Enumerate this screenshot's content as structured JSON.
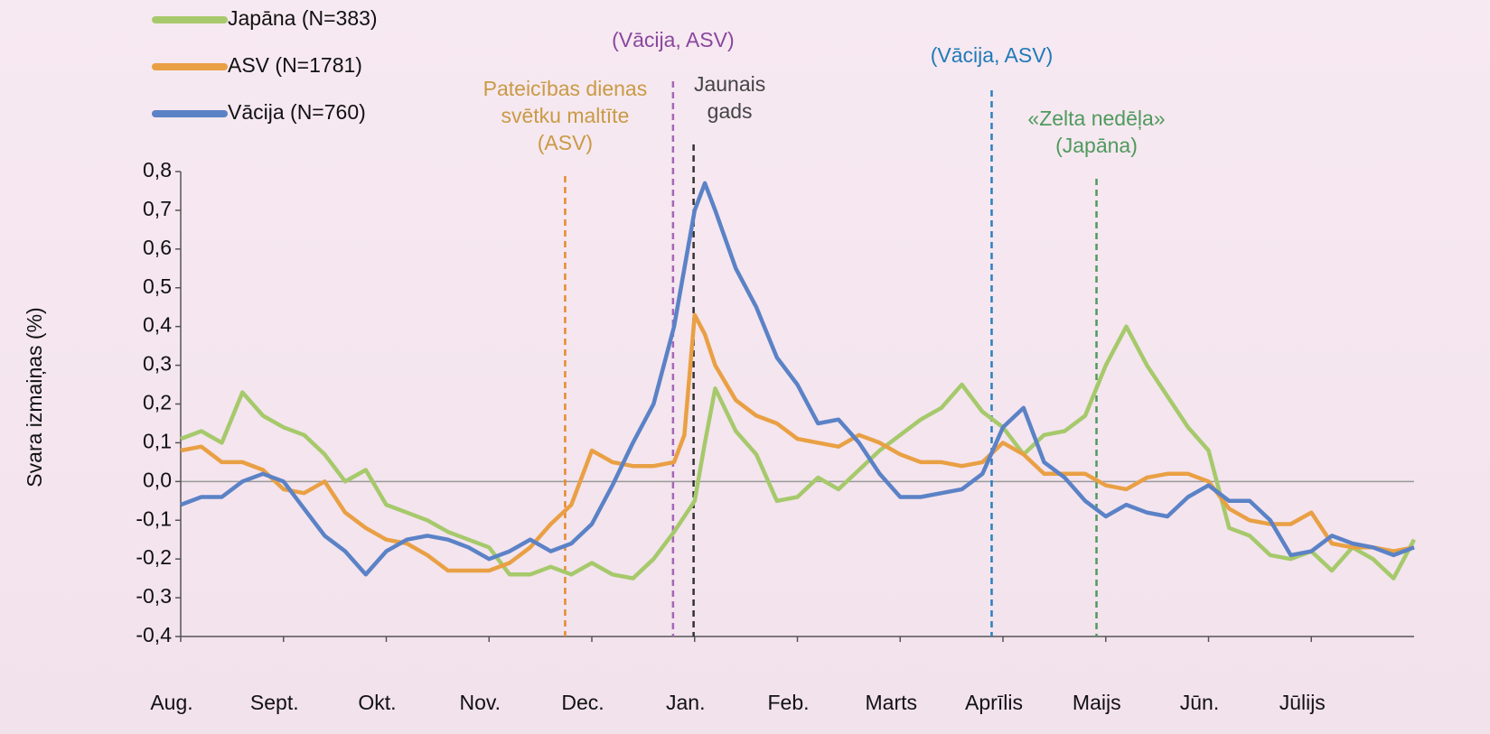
{
  "chart_data": {
    "type": "line",
    "y_label": "Svara izmaiņas (%)",
    "xlim": [
      0,
      12
    ],
    "ylim": [
      -0.4,
      0.8
    ],
    "xticks": [
      {
        "value": 0,
        "label": "Aug."
      },
      {
        "value": 1,
        "label": "Sept."
      },
      {
        "value": 2,
        "label": "Okt."
      },
      {
        "value": 3,
        "label": "Nov."
      },
      {
        "value": 4,
        "label": "Dec."
      },
      {
        "value": 5,
        "label": "Jan."
      },
      {
        "value": 6,
        "label": "Feb."
      },
      {
        "value": 7,
        "label": "Marts"
      },
      {
        "value": 8,
        "label": "Aprīlis"
      },
      {
        "value": 9,
        "label": "Maijs"
      },
      {
        "value": 10,
        "label": "Jūn."
      },
      {
        "value": 11,
        "label": "Jūlijs"
      }
    ],
    "yticks": [
      {
        "value": 0.8,
        "label": "0,8"
      },
      {
        "value": 0.7,
        "label": "0,7"
      },
      {
        "value": 0.6,
        "label": "0,6"
      },
      {
        "value": 0.5,
        "label": "0,5"
      },
      {
        "value": 0.4,
        "label": "0,4"
      },
      {
        "value": 0.3,
        "label": "0,3"
      },
      {
        "value": 0.2,
        "label": "0,2"
      },
      {
        "value": 0.1,
        "label": "0,1"
      },
      {
        "value": 0,
        "label": "0,0"
      },
      {
        "value": -0.1,
        "label": "-0,1"
      },
      {
        "value": -0.2,
        "label": "-0,2"
      },
      {
        "value": -0.3,
        "label": "-0,3"
      },
      {
        "value": -0.4,
        "label": "-0,4"
      }
    ],
    "legend": "top-left",
    "x": [
      0,
      0.2,
      0.4,
      0.6,
      0.8,
      1.0,
      1.2,
      1.4,
      1.6,
      1.8,
      2.0,
      2.2,
      2.4,
      2.6,
      2.8,
      3.0,
      3.2,
      3.4,
      3.6,
      3.8,
      4.0,
      4.2,
      4.4,
      4.6,
      4.8,
      4.9,
      5.0,
      5.1,
      5.2,
      5.4,
      5.6,
      5.8,
      6.0,
      6.2,
      6.4,
      6.6,
      6.8,
      7.0,
      7.2,
      7.4,
      7.6,
      7.8,
      8.0,
      8.2,
      8.4,
      8.6,
      8.8,
      9.0,
      9.2,
      9.4,
      9.6,
      9.8,
      10.0,
      10.2,
      10.4,
      10.6,
      10.8,
      11.0,
      11.2,
      11.4,
      11.6,
      11.8,
      12.0
    ],
    "series": [
      {
        "name": "Japāna (N=383)",
        "color": "#a6c96b",
        "values": [
          0.11,
          0.13,
          0.1,
          0.23,
          0.17,
          0.14,
          0.12,
          0.07,
          0.0,
          0.03,
          -0.06,
          -0.08,
          -0.1,
          -0.13,
          -0.15,
          -0.17,
          -0.24,
          -0.24,
          -0.22,
          -0.24,
          -0.21,
          -0.24,
          -0.25,
          -0.2,
          -0.13,
          -0.09,
          -0.05,
          0.1,
          0.24,
          0.13,
          0.07,
          -0.05,
          -0.04,
          0.01,
          -0.02,
          0.03,
          0.08,
          0.12,
          0.16,
          0.19,
          0.25,
          0.18,
          0.14,
          0.07,
          0.12,
          0.13,
          0.17,
          0.3,
          0.4,
          0.3,
          0.22,
          0.14,
          0.08,
          -0.12,
          -0.14,
          -0.19,
          -0.2,
          -0.18,
          -0.23,
          -0.17,
          -0.2,
          -0.25,
          -0.15
        ]
      },
      {
        "name": "ASV (N=1781)",
        "color": "#e9a044",
        "values": [
          0.08,
          0.09,
          0.05,
          0.05,
          0.03,
          -0.02,
          -0.03,
          0.0,
          -0.08,
          -0.12,
          -0.15,
          -0.16,
          -0.19,
          -0.23,
          -0.23,
          -0.23,
          -0.21,
          -0.17,
          -0.11,
          -0.06,
          0.08,
          0.05,
          0.04,
          0.04,
          0.05,
          0.12,
          0.43,
          0.38,
          0.3,
          0.21,
          0.17,
          0.15,
          0.11,
          0.1,
          0.09,
          0.12,
          0.1,
          0.07,
          0.05,
          0.05,
          0.04,
          0.05,
          0.1,
          0.07,
          0.02,
          0.02,
          0.02,
          -0.01,
          -0.02,
          0.01,
          0.02,
          0.02,
          0.0,
          -0.07,
          -0.1,
          -0.11,
          -0.11,
          -0.08,
          -0.16,
          -0.17,
          -0.17,
          -0.18,
          -0.17
        ]
      },
      {
        "name": "Vācija (N=760)",
        "color": "#5b82c6",
        "values": [
          -0.06,
          -0.04,
          -0.04,
          0.0,
          0.02,
          0.0,
          -0.07,
          -0.14,
          -0.18,
          -0.24,
          -0.18,
          -0.15,
          -0.14,
          -0.15,
          -0.17,
          -0.2,
          -0.18,
          -0.15,
          -0.18,
          -0.16,
          -0.11,
          -0.01,
          0.1,
          0.2,
          0.4,
          0.55,
          0.7,
          0.77,
          0.7,
          0.55,
          0.45,
          0.32,
          0.25,
          0.15,
          0.16,
          0.1,
          0.02,
          -0.04,
          -0.04,
          -0.03,
          -0.02,
          0.02,
          0.14,
          0.19,
          0.05,
          0.01,
          -0.05,
          -0.09,
          -0.06,
          -0.08,
          -0.09,
          -0.04,
          -0.01,
          -0.05,
          -0.05,
          -0.1,
          -0.19,
          -0.18,
          -0.14,
          -0.16,
          -0.17,
          -0.19,
          -0.17
        ]
      }
    ],
    "annotations": [
      {
        "x": 3.74,
        "color": "#e58a2e",
        "text_color": "#c99a45",
        "lines": [
          "Pateicības dienas",
          "svētku maltīte",
          "(ASV)"
        ]
      },
      {
        "x": 4.79,
        "color": "#a566b8",
        "text_color": "#8a479e",
        "lines": [
          "(Vācija, ASV)"
        ]
      },
      {
        "x": 4.99,
        "color": "#333333",
        "text_color": "#444444",
        "lines": [
          "Jaunais",
          "gads"
        ]
      },
      {
        "x": 7.89,
        "color": "#2a7fbf",
        "text_color": "#1f7ab8",
        "lines": [
          "(Vācija, ASV)"
        ]
      },
      {
        "x": 8.91,
        "color": "#4f9a5e",
        "text_color": "#4f9a5e",
        "lines": [
          "«Zelta nedēļa»",
          "(Japāna)"
        ]
      }
    ]
  }
}
